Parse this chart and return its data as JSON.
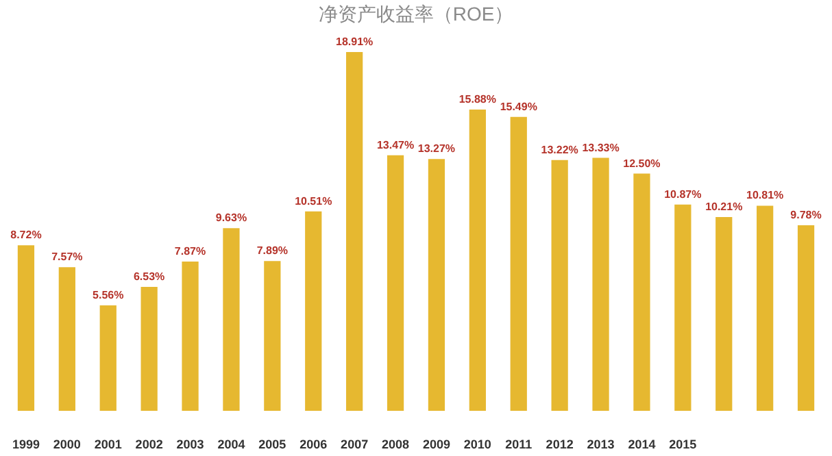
{
  "chart_data": {
    "type": "bar",
    "title": "净资产收益率（ROE）",
    "categories": [
      "1999",
      "2000",
      "2001",
      "2002",
      "2003",
      "2004",
      "2005",
      "2006",
      "2007",
      "2008",
      "2009",
      "2010",
      "2011",
      "2012",
      "2013",
      "2014",
      "2015",
      null,
      null,
      null
    ],
    "values": [
      8.72,
      7.57,
      5.56,
      6.53,
      7.87,
      9.63,
      7.89,
      10.51,
      18.91,
      13.47,
      13.27,
      15.88,
      15.49,
      13.22,
      13.33,
      12.5,
      10.87,
      10.21,
      10.81,
      9.78
    ],
    "value_labels": [
      "8.72%",
      "7.57%",
      "5.56%",
      "6.53%",
      "7.87%",
      "9.63%",
      "7.89%",
      "10.51%",
      "18.91%",
      "13.47%",
      "13.27%",
      "15.88%",
      "15.49%",
      "13.22%",
      "13.33%",
      "12.50%",
      "10.87%",
      "10.21%",
      "10.81%",
      "9.78%"
    ],
    "color": "#e6b830",
    "tick_labels": "x"
  }
}
